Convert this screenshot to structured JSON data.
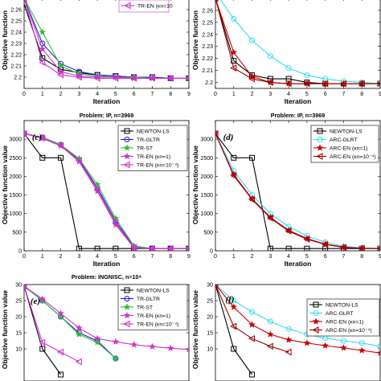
{
  "chart_data": [
    {
      "id": "a",
      "type": "line",
      "tag": "",
      "title": "",
      "xlabel": "Iteration",
      "ylabel": "Objective function",
      "xlim": [
        0,
        9
      ],
      "ylim": [
        2.19,
        2.27
      ],
      "xticks": [
        "0",
        "1",
        "2",
        "3",
        "4",
        "5",
        "6",
        "7",
        "8",
        "9"
      ],
      "yticks": [
        {
          "v": 2.2,
          "t": "2.2"
        },
        {
          "v": 2.21,
          "t": "2.21"
        },
        {
          "v": 2.22,
          "t": "2.22"
        },
        {
          "v": 2.23,
          "t": "2.23"
        },
        {
          "v": 2.24,
          "t": "2.24"
        },
        {
          "v": 2.25,
          "t": "2.25"
        },
        {
          "v": 2.26,
          "t": "2.26"
        }
      ],
      "legend": [
        {
          "label": "TR-EN (κn=10",
          "series": 4
        }
      ],
      "series": [
        {
          "name": "NEWTON-LS",
          "color": "#000000",
          "marker": "square",
          "x": [
            0,
            1,
            2,
            3,
            4,
            5,
            6,
            7,
            8,
            9
          ],
          "y": [
            2.265,
            2.217,
            2.207,
            2.204,
            2.202,
            2.201,
            2.2,
            2.2,
            2.199,
            2.199
          ]
        },
        {
          "name": "TR-GLTR",
          "color": "#2222cc",
          "marker": "circle",
          "x": [
            0,
            1,
            2,
            3,
            4,
            5,
            6,
            7,
            8,
            9
          ],
          "y": [
            2.27,
            2.23,
            2.212,
            2.205,
            2.202,
            2.201,
            2.2,
            2.2,
            2.199,
            2.199
          ]
        },
        {
          "name": "TR-ST",
          "color": "#33bb33",
          "marker": "star",
          "x": [
            0,
            1,
            2,
            3,
            4,
            5,
            6,
            7,
            8,
            9
          ],
          "y": [
            2.27,
            2.24,
            2.21,
            2.203,
            2.201,
            2.2,
            2.2,
            2.199,
            2.199,
            2.199
          ]
        },
        {
          "name": "TR-EN (κn=1)",
          "color": "#cc33cc",
          "marker": "star",
          "x": [
            0,
            1,
            2,
            3,
            4,
            5,
            6,
            7,
            8,
            9
          ],
          "y": [
            2.27,
            2.225,
            2.205,
            2.201,
            2.2,
            2.2,
            2.199,
            2.199,
            2.199,
            2.199
          ]
        },
        {
          "name": "TR-EN",
          "color": "#cc33cc",
          "marker": "tri-left",
          "x": [
            0,
            1,
            2,
            3,
            4,
            5,
            6,
            7,
            8,
            9
          ],
          "y": [
            2.27,
            2.213,
            2.202,
            2.2,
            2.199,
            2.199,
            2.199,
            2.199,
            2.199,
            2.199
          ]
        }
      ]
    },
    {
      "id": "b",
      "type": "line",
      "tag": "",
      "title": "",
      "xlabel": "Iteration",
      "ylabel": "Objective function",
      "xlim": [
        0,
        9
      ],
      "ylim": [
        2.195,
        2.27
      ],
      "xticks": [
        "0",
        "1",
        "2",
        "3",
        "4",
        "5",
        "6",
        "7",
        "8",
        "9"
      ],
      "yticks": [
        {
          "v": 2.2,
          "t": "2.2"
        },
        {
          "v": 2.21,
          "t": "2.21"
        },
        {
          "v": 2.22,
          "t": "2.22"
        },
        {
          "v": 2.23,
          "t": "2.23"
        },
        {
          "v": 2.24,
          "t": "2.24"
        },
        {
          "v": 2.25,
          "t": "2.25"
        },
        {
          "v": 2.26,
          "t": "2.26"
        }
      ],
      "legend": [],
      "series": [
        {
          "name": "NEWTON-LS",
          "color": "#000000",
          "marker": "square",
          "x": [
            0,
            1,
            2,
            3,
            4,
            5,
            6,
            7,
            8,
            9
          ],
          "y": [
            2.27,
            2.218,
            2.206,
            2.203,
            2.203,
            2.2,
            2.199,
            2.199,
            2.199,
            2.199
          ]
        },
        {
          "name": "ARC-GLRT",
          "color": "#33ddee",
          "marker": "circle",
          "x": [
            0,
            1,
            2,
            3,
            4,
            5,
            6,
            7,
            8,
            9
          ],
          "y": [
            2.275,
            2.253,
            2.235,
            2.222,
            2.212,
            2.206,
            2.203,
            2.201,
            2.2,
            2.199
          ]
        },
        {
          "name": "ARC-EN (κn=1)",
          "color": "#cc0000",
          "marker": "star",
          "x": [
            0,
            1,
            2,
            3,
            4,
            5,
            6,
            7,
            8,
            9
          ],
          "y": [
            2.27,
            2.225,
            2.205,
            2.2,
            2.199,
            2.199,
            2.199,
            2.199,
            2.199,
            2.199
          ]
        },
        {
          "name": "ARC-EN",
          "color": "#990000",
          "marker": "tri-left",
          "x": [
            0,
            1,
            2,
            3,
            4,
            5,
            6,
            7,
            8,
            9
          ],
          "y": [
            2.27,
            2.212,
            2.203,
            2.2,
            2.199,
            2.199,
            2.199,
            2.199,
            2.199,
            2.199
          ]
        }
      ]
    },
    {
      "id": "c",
      "type": "line",
      "tag": "(c)",
      "title": "Problem: IP, n=3969",
      "xlabel": "Iteration",
      "ylabel": "Objective function value",
      "xlim": [
        0,
        9
      ],
      "ylim": [
        0,
        3500
      ],
      "xticks": [
        "0",
        "1",
        "2",
        "3",
        "4",
        "5",
        "6",
        "7",
        "8",
        "9"
      ],
      "yticks": [
        {
          "v": 0,
          "t": "0"
        },
        {
          "v": 500,
          "t": "500"
        },
        {
          "v": 1000,
          "t": "1000"
        },
        {
          "v": 1500,
          "t": "1500"
        },
        {
          "v": 2000,
          "t": "2000"
        },
        {
          "v": 2500,
          "t": "2500"
        },
        {
          "v": 3000,
          "t": "3000"
        }
      ],
      "legend": [
        {
          "label": "NEWTON-LS",
          "series": 0
        },
        {
          "label": "TR-GLTR",
          "series": 1
        },
        {
          "label": "TR-ST",
          "series": 2
        },
        {
          "label": "TR-EN (κn=1)",
          "series": 3
        },
        {
          "label": "TR-EN (κn=10⁻⁴)",
          "series": 4
        }
      ],
      "series": [
        {
          "name": "NEWTON-LS",
          "color": "#000000",
          "marker": "square",
          "x": [
            0,
            1,
            2,
            3,
            4,
            5,
            6,
            7,
            8,
            9
          ],
          "y": [
            3150,
            2500,
            2500,
            60,
            60,
            60,
            60,
            60,
            60,
            60
          ]
        },
        {
          "name": "TR-GLTR",
          "color": "#2222cc",
          "marker": "circle",
          "x": [
            0,
            1,
            2,
            3,
            4,
            5,
            6,
            7,
            8,
            9
          ],
          "y": [
            3150,
            3050,
            2850,
            2450,
            1700,
            800,
            100,
            60,
            60,
            60
          ]
        },
        {
          "name": "TR-ST",
          "color": "#33bb33",
          "marker": "star",
          "x": [
            0,
            1,
            2,
            3,
            4,
            5,
            6,
            7,
            8,
            9
          ],
          "y": [
            3150,
            3050,
            2850,
            2480,
            1780,
            870,
            130,
            60,
            60,
            60
          ]
        },
        {
          "name": "TR-EN (κn=1)",
          "color": "#cc33cc",
          "marker": "star",
          "x": [
            0,
            1,
            2,
            3,
            4,
            5,
            6,
            7,
            8,
            9
          ],
          "y": [
            3150,
            3020,
            2820,
            2400,
            1600,
            700,
            80,
            60,
            60,
            60
          ]
        },
        {
          "name": "TR-EN (κn=10⁻⁴)",
          "color": "#cc33cc",
          "marker": "tri-left",
          "x": [
            0,
            1,
            2,
            3,
            4,
            5,
            6,
            7,
            8,
            9
          ],
          "y": [
            3150,
            3030,
            2830,
            2430,
            1650,
            750,
            90,
            60,
            60,
            60
          ]
        }
      ]
    },
    {
      "id": "d",
      "type": "line",
      "tag": "(d)",
      "title": "Problem: IP, n=3969",
      "xlabel": "Iteration",
      "ylabel": "Objective function value",
      "xlim": [
        0,
        9
      ],
      "ylim": [
        0,
        3500
      ],
      "xticks": [
        "0",
        "1",
        "2",
        "3",
        "4",
        "5",
        "6",
        "7",
        "8",
        "9"
      ],
      "yticks": [
        {
          "v": 0,
          "t": "0"
        },
        {
          "v": 500,
          "t": "500"
        },
        {
          "v": 1000,
          "t": "1000"
        },
        {
          "v": 1500,
          "t": "1500"
        },
        {
          "v": 2000,
          "t": "2000"
        },
        {
          "v": 2500,
          "t": "2500"
        },
        {
          "v": 3000,
          "t": "3000"
        }
      ],
      "legend": [
        {
          "label": "NEWTON-LS",
          "series": 0
        },
        {
          "label": "ARC-GLRT",
          "series": 1
        },
        {
          "label": "ARC-EN (κn=1)",
          "series": 2
        },
        {
          "label": "ARC-EN (κn=10⁻⁴)",
          "series": 3
        }
      ],
      "series": [
        {
          "name": "NEWTON-LS",
          "color": "#000000",
          "marker": "square",
          "x": [
            0,
            1,
            2,
            3,
            4,
            5,
            6,
            7,
            8,
            9
          ],
          "y": [
            3150,
            2500,
            2500,
            60,
            60,
            60,
            60,
            60,
            60,
            60
          ]
        },
        {
          "name": "ARC-GLRT",
          "color": "#33ddee",
          "marker": "circle",
          "x": [
            0,
            1,
            2,
            3,
            4,
            5,
            6,
            7,
            8,
            9
          ],
          "y": [
            3150,
            2150,
            1500,
            1000,
            650,
            400,
            230,
            120,
            80,
            60
          ]
        },
        {
          "name": "ARC-EN (κn=1)",
          "color": "#cc0000",
          "marker": "star",
          "x": [
            0,
            1,
            2,
            3,
            4,
            5,
            6,
            7,
            8,
            9
          ],
          "y": [
            3150,
            2050,
            1400,
            900,
            550,
            330,
            180,
            100,
            70,
            60
          ]
        },
        {
          "name": "ARC-EN (κn=10⁻⁴)",
          "color": "#990000",
          "marker": "tri-left",
          "x": [
            0,
            1,
            2,
            3,
            4,
            5,
            6,
            7,
            8,
            9
          ],
          "y": [
            3150,
            2020,
            1380,
            880,
            530,
            310,
            170,
            90,
            65,
            60
          ]
        }
      ]
    },
    {
      "id": "e",
      "type": "line",
      "tag": "(e)",
      "title": "Problem: INGNISC, n=10⁴",
      "xlabel": "",
      "ylabel": "Objective function value",
      "xlim": [
        0,
        9
      ],
      "ylim": [
        0,
        30
      ],
      "xticks": [],
      "yticks": [
        {
          "v": 10,
          "t": "10"
        },
        {
          "v": 15,
          "t": "15"
        },
        {
          "v": 20,
          "t": "20"
        },
        {
          "v": 25,
          "t": "25"
        },
        {
          "v": 30,
          "t": "30"
        }
      ],
      "legend": [
        {
          "label": "NEWTON-LS",
          "series": 0
        },
        {
          "label": "TR-GLTR",
          "series": 1
        },
        {
          "label": "TR-ST",
          "series": 2
        },
        {
          "label": "TR-EN (κn=1)",
          "series": 3
        },
        {
          "label": "TR-EN (κn=10⁻⁴)",
          "series": 4
        }
      ],
      "series": [
        {
          "name": "NEWTON-LS",
          "color": "#000000",
          "marker": "square",
          "x": [
            0,
            1,
            2
          ],
          "y": [
            29.5,
            10,
            2
          ]
        },
        {
          "name": "TR-GLTR",
          "color": "#2222cc",
          "marker": "circle",
          "x": [
            0,
            1,
            2,
            3,
            4,
            5
          ],
          "y": [
            29.5,
            25,
            20,
            15,
            12.5,
            7
          ]
        },
        {
          "name": "TR-ST",
          "color": "#33bb33",
          "marker": "star",
          "x": [
            0,
            1,
            2,
            3,
            4,
            5
          ],
          "y": [
            29.5,
            25,
            20,
            14.5,
            12,
            7
          ]
        },
        {
          "name": "TR-EN (κn=1)",
          "color": "#cc33cc",
          "marker": "star",
          "x": [
            0,
            1,
            2,
            3,
            4,
            5,
            6,
            7,
            8,
            9
          ],
          "y": [
            29.5,
            25.5,
            21,
            16.5,
            13.2,
            12.2,
            11.3,
            10.7,
            10.2,
            9.8
          ]
        },
        {
          "name": "TR-EN (κn=10⁻⁴)",
          "color": "#cc33cc",
          "marker": "tri-left",
          "x": [
            0,
            1,
            2,
            3
          ],
          "y": [
            29.5,
            12,
            9,
            6
          ]
        }
      ]
    },
    {
      "id": "f",
      "type": "line",
      "tag": "(f)",
      "title": "",
      "xlabel": "",
      "ylabel": "Objective function value",
      "xlim": [
        0,
        9
      ],
      "ylim": [
        0,
        30
      ],
      "xticks": [],
      "yticks": [
        {
          "v": 10,
          "t": "10"
        },
        {
          "v": 15,
          "t": "15"
        },
        {
          "v": 20,
          "t": "20"
        },
        {
          "v": 25,
          "t": "25"
        },
        {
          "v": 30,
          "t": "30"
        }
      ],
      "legend": [
        {
          "label": "NEWTON-LS",
          "series": 0
        },
        {
          "label": "ARC-GLRT",
          "series": 1
        },
        {
          "label": "ARC-EN (κn=1)",
          "series": 2
        },
        {
          "label": "ARC-EN (κn=10⁻⁴)",
          "series": 3
        }
      ],
      "series": [
        {
          "name": "NEWTON-LS",
          "color": "#000000",
          "marker": "square",
          "x": [
            0,
            1,
            2
          ],
          "y": [
            30,
            10,
            2
          ]
        },
        {
          "name": "ARC-GLRT",
          "color": "#33ddee",
          "marker": "circle",
          "x": [
            0,
            1,
            2,
            3,
            4,
            5,
            6,
            7,
            8,
            9
          ],
          "y": [
            30,
            25,
            21.5,
            18.5,
            16.2,
            14.5,
            13.3,
            12.5,
            11.8,
            10.8
          ]
        },
        {
          "name": "ARC-EN (κn=1)",
          "color": "#cc0000",
          "marker": "star",
          "x": [
            0,
            1,
            2,
            3,
            4,
            5,
            6,
            7,
            8,
            9
          ],
          "y": [
            30,
            23,
            17.5,
            14.5,
            12.8,
            11.8,
            11,
            10.3,
            9.5,
            8.7
          ]
        },
        {
          "name": "ARC-EN (κn=10⁻⁴)",
          "color": "#990000",
          "marker": "tri-left",
          "x": [
            0,
            1,
            2,
            3,
            4
          ],
          "y": [
            30,
            17,
            13.2,
            10.8,
            9
          ]
        }
      ]
    }
  ]
}
